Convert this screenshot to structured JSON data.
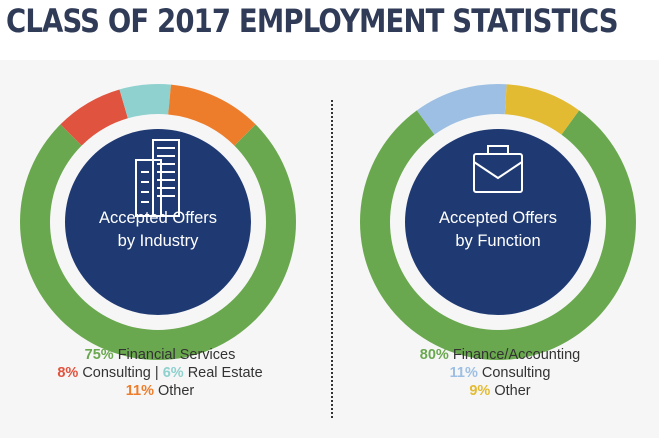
{
  "title": "CLASS OF 2017 EMPLOYMENT STATISTICS",
  "chart_data": [
    {
      "type": "pie",
      "center_label_1": "Accepted Offers",
      "center_label_2": "by Industry",
      "slices": [
        {
          "label": "Financial Services",
          "pct": "75%",
          "value": 75,
          "color": "#6aa84f"
        },
        {
          "label": "Consulting",
          "pct": "8%",
          "value": 8,
          "color": "#e0533e"
        },
        {
          "label": "Real Estate",
          "pct": "6%",
          "value": 6,
          "color": "#8ed1ce"
        },
        {
          "label": "Other",
          "pct": "11%",
          "value": 11,
          "color": "#ee7d2b"
        }
      ]
    },
    {
      "type": "pie",
      "center_label_1": "Accepted Offers",
      "center_label_2": "by Function",
      "slices": [
        {
          "label": "Finance/Accounting",
          "pct": "80%",
          "value": 80,
          "color": "#6aa84f"
        },
        {
          "label": "Consulting",
          "pct": "11%",
          "value": 11,
          "color": "#9dbfe3"
        },
        {
          "label": "Other",
          "pct": "9%",
          "value": 9,
          "color": "#e3bb33"
        }
      ]
    }
  ],
  "colors": {
    "title": "#2f3b57",
    "center_fill": "#1f3a73",
    "separator": "#333333"
  },
  "legend_separator": "|",
  "icons": [
    "office-building-icon",
    "briefcase-icon"
  ]
}
